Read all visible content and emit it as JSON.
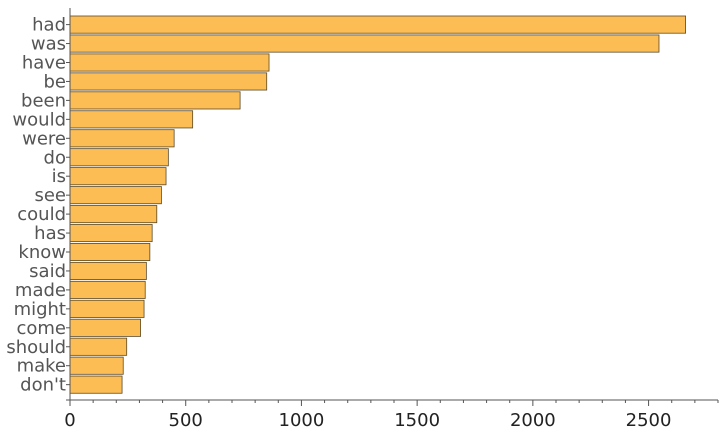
{
  "chart_data": {
    "type": "bar",
    "orientation": "horizontal",
    "title": "",
    "xlabel": "",
    "ylabel": "",
    "categories": [
      "had",
      "was",
      "have",
      "be",
      "been",
      "would",
      "were",
      "do",
      "is",
      "see",
      "could",
      "has",
      "know",
      "said",
      "made",
      "might",
      "come",
      "should",
      "make",
      "don't"
    ],
    "values": [
      2660,
      2545,
      860,
      850,
      735,
      530,
      450,
      425,
      415,
      395,
      375,
      355,
      345,
      330,
      325,
      320,
      305,
      245,
      230,
      225
    ],
    "xlim": [
      0,
      2800
    ],
    "xticks": [
      0,
      500,
      1000,
      1500,
      2000,
      2500
    ],
    "xtick_labels": [
      "0",
      "500",
      "1000",
      "1500",
      "2000",
      "2500"
    ],
    "bar_color": "#fcbd55",
    "grid": false
  }
}
